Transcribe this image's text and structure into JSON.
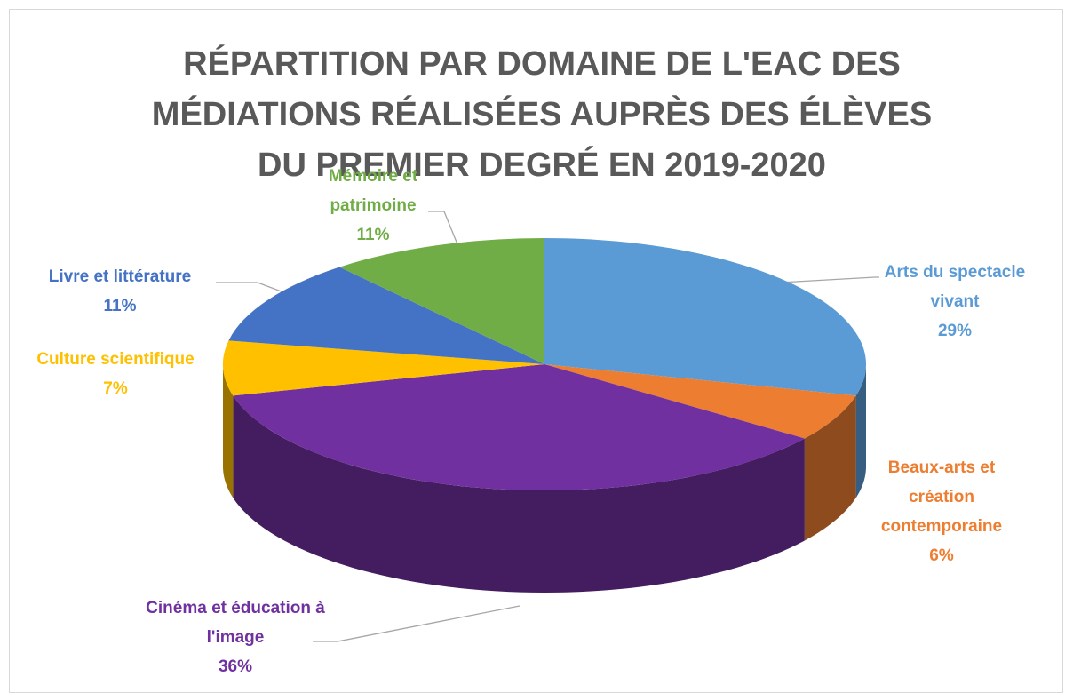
{
  "chart_data": {
    "type": "pie",
    "title": "RÉPARTITION PAR DOMAINE DE L'EAC DES MÉDIATIONS RÉALISÉES AUPRÈS DES ÉLÈVES DU PREMIER DEGRÉ EN 2019-2020",
    "categories": [
      "Arts du spectacle vivant",
      "Beaux-arts et création contemporaine",
      "Cinéma et éducation à l'image",
      "Culture scientifique",
      "Livre et littérature",
      "Mémoire et patrimoine"
    ],
    "values": [
      29,
      6,
      36,
      7,
      11,
      11
    ],
    "value_labels": [
      "29%",
      "6%",
      "36%",
      "7%",
      "11%",
      "11%"
    ],
    "colors": [
      "#5b9bd5",
      "#ed7d31",
      "#7030a0",
      "#ffc000",
      "#4472c4",
      "#70ad47"
    ]
  }
}
